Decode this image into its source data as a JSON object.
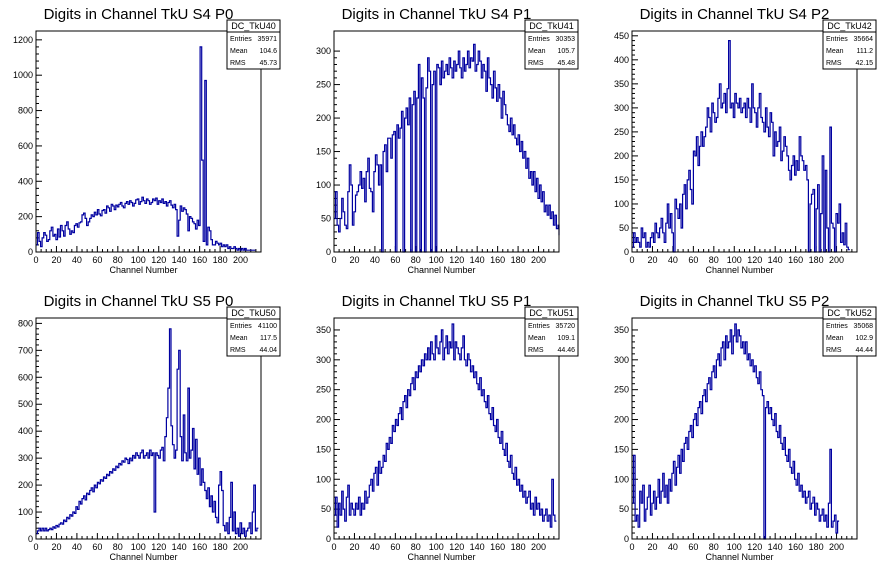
{
  "colors": {
    "line": "#0000a0",
    "axis": "#000000",
    "background": "#ffffff"
  },
  "chart_data": [
    {
      "type": "histogram",
      "title": "Digits in Channel TkU S4 P0",
      "xlabel": "Channel Number",
      "xlim": [
        0,
        220
      ],
      "ylim": [
        0,
        1250
      ],
      "yticks": [
        0,
        200,
        400,
        600,
        800,
        1000,
        1200
      ],
      "xticks": [
        0,
        20,
        40,
        60,
        80,
        100,
        120,
        140,
        160,
        180,
        200
      ],
      "stats": {
        "name": "DC_TkU40",
        "rows": [
          [
            "Entries",
            "35971"
          ],
          [
            "Mean",
            "104.6"
          ],
          [
            "RMS",
            "45.73"
          ]
        ]
      },
      "bin_width": 1.5,
      "values": [
        40,
        110,
        60,
        30,
        80,
        110,
        95,
        60,
        70,
        120,
        140,
        90,
        100,
        70,
        130,
        85,
        150,
        120,
        90,
        150,
        170,
        130,
        100,
        120,
        110,
        150,
        160,
        140,
        165,
        170,
        210,
        220,
        190,
        150,
        170,
        190,
        210,
        200,
        225,
        210,
        240,
        215,
        205,
        235,
        240,
        220,
        260,
        250,
        230,
        270,
        260,
        240,
        265,
        255,
        270,
        280,
        260,
        250,
        275,
        285,
        270,
        290,
        280,
        260,
        275,
        295,
        300,
        270,
        285,
        310,
        290,
        275,
        300,
        290,
        270,
        280,
        300,
        290,
        305,
        270,
        290,
        280,
        300,
        275,
        285,
        260,
        280,
        290,
        265,
        250,
        270,
        240,
        90,
        180,
        260,
        230,
        250,
        240,
        215,
        120,
        200,
        190,
        170,
        160,
        130,
        180,
        150,
        1160,
        520,
        60,
        970,
        40,
        140,
        120,
        70,
        40,
        40,
        60,
        50,
        40,
        50,
        30,
        40,
        30,
        40,
        20,
        30,
        20,
        20,
        30,
        20,
        10,
        20,
        10,
        20,
        10,
        20,
        10,
        10,
        10,
        10,
        10,
        10
      ]
    },
    {
      "type": "histogram",
      "title": "Digits in Channel TkU S4 P1",
      "xlabel": "Channel Number",
      "xlim": [
        0,
        220
      ],
      "ylim": [
        0,
        330
      ],
      "yticks": [
        0,
        50,
        100,
        150,
        200,
        250,
        300
      ],
      "xticks": [
        0,
        20,
        40,
        60,
        80,
        100,
        120,
        140,
        160,
        180,
        200
      ],
      "stats": {
        "name": "DC_TkU41",
        "rows": [
          [
            "Entries",
            "30353"
          ],
          [
            "Mean",
            "105.7"
          ],
          [
            "RMS",
            "45.48"
          ]
        ]
      },
      "bin_width": 1.5,
      "values": [
        50,
        90,
        40,
        30,
        50,
        80,
        60,
        40,
        35,
        90,
        130,
        100,
        40,
        60,
        85,
        90,
        100,
        120,
        95,
        110,
        75,
        120,
        140,
        95,
        90,
        60,
        120,
        145,
        130,
        100,
        130,
        0,
        150,
        160,
        120,
        170,
        170,
        140,
        175,
        180,
        0,
        190,
        170,
        185,
        210,
        0,
        200,
        215,
        190,
        230,
        0,
        220,
        240,
        0,
        230,
        280,
        0,
        260,
        230,
        0,
        245,
        290,
        270,
        0,
        250,
        270,
        0,
        280,
        275,
        250,
        285,
        260,
        270,
        280,
        265,
        290,
        275,
        260,
        285,
        270,
        280,
        300,
        275,
        260,
        290,
        270,
        280,
        300,
        275,
        290,
        285,
        310,
        270,
        280,
        300,
        285,
        260,
        280,
        270,
        240,
        290,
        260,
        250,
        230,
        270,
        245,
        225,
        250,
        230,
        200,
        240,
        220,
        205,
        190,
        180,
        200,
        175,
        190,
        170,
        160,
        175,
        150,
        165,
        140,
        150,
        125,
        140,
        110,
        120,
        100,
        120,
        90,
        110,
        80,
        100,
        75,
        90,
        60,
        70,
        55,
        70,
        50,
        60,
        40,
        55,
        35,
        40,
        30,
        25,
        35,
        30,
        25,
        30
      ]
    },
    {
      "type": "histogram",
      "title": "Digits in Channel TkU S4 P2",
      "xlabel": "Channel Number",
      "xlim": [
        0,
        220
      ],
      "ylim": [
        0,
        460
      ],
      "yticks": [
        0,
        50,
        100,
        150,
        200,
        250,
        300,
        350,
        400,
        450
      ],
      "xticks": [
        0,
        20,
        40,
        60,
        80,
        100,
        120,
        140,
        160,
        180,
        200
      ],
      "stats": {
        "name": "DC_TkU42",
        "rows": [
          [
            "Entries",
            "35664"
          ],
          [
            "Mean",
            "111.2"
          ],
          [
            "RMS",
            "42.15"
          ]
        ]
      },
      "bin_width": 1.5,
      "values": [
        10,
        40,
        20,
        30,
        20,
        10,
        50,
        30,
        40,
        10,
        20,
        10,
        30,
        40,
        20,
        60,
        40,
        30,
        50,
        70,
        40,
        20,
        60,
        100,
        50,
        80,
        40,
        0,
        110,
        90,
        70,
        100,
        50,
        120,
        140,
        90,
        150,
        170,
        130,
        100,
        210,
        200,
        240,
        180,
        220,
        250,
        220,
        240,
        260,
        300,
        280,
        250,
        310,
        290,
        270,
        280,
        320,
        350,
        300,
        310,
        330,
        290,
        340,
        440,
        300,
        310,
        280,
        330,
        310,
        300,
        320,
        290,
        300,
        310,
        280,
        320,
        300,
        270,
        350,
        300,
        290,
        260,
        300,
        330,
        280,
        270,
        250,
        300,
        260,
        240,
        290,
        270,
        200,
        250,
        220,
        230,
        260,
        190,
        210,
        240,
        220,
        200,
        170,
        150,
        180,
        200,
        160,
        190,
        170,
        240,
        200,
        190,
        170,
        180,
        150,
        0,
        100,
        120,
        130,
        0,
        90,
        140,
        0,
        80,
        200,
        0,
        170,
        50,
        0,
        260,
        60,
        50,
        0,
        80,
        60,
        100,
        20,
        40,
        15,
        60,
        10,
        5
      ]
    },
    {
      "type": "histogram",
      "title": "Digits in Channel TkU S5 P0",
      "xlabel": "Channel Number",
      "xlim": [
        0,
        220
      ],
      "ylim": [
        0,
        820
      ],
      "yticks": [
        0,
        100,
        200,
        300,
        400,
        500,
        600,
        700,
        800
      ],
      "xticks": [
        0,
        20,
        40,
        60,
        80,
        100,
        120,
        140,
        160,
        180,
        200
      ],
      "stats": {
        "name": "DC_TkU50",
        "rows": [
          [
            "Entries",
            "41100"
          ],
          [
            "Mean",
            "117.5"
          ],
          [
            "RMS",
            "44.04"
          ]
        ]
      },
      "bin_width": 1.5,
      "values": [
        20,
        30,
        40,
        30,
        40,
        30,
        40,
        30,
        35,
        40,
        35,
        45,
        40,
        50,
        45,
        55,
        60,
        55,
        70,
        65,
        80,
        75,
        90,
        85,
        100,
        95,
        120,
        110,
        140,
        130,
        150,
        160,
        145,
        170,
        165,
        180,
        190,
        175,
        200,
        190,
        210,
        205,
        220,
        215,
        230,
        225,
        240,
        235,
        250,
        245,
        260,
        255,
        270,
        265,
        280,
        275,
        290,
        285,
        300,
        295,
        280,
        300,
        290,
        310,
        300,
        320,
        310,
        300,
        320,
        330,
        300,
        310,
        320,
        300,
        330,
        310,
        320,
        100,
        320,
        310,
        300,
        330,
        340,
        290,
        380,
        450,
        560,
        780,
        420,
        350,
        300,
        330,
        630,
        700,
        380,
        290,
        460,
        320,
        290,
        560,
        300,
        330,
        410,
        260,
        370,
        240,
        300,
        200,
        260,
        210,
        180,
        150,
        190,
        120,
        160,
        100,
        140,
        80,
        60,
        200,
        250,
        180,
        50,
        30,
        60,
        20,
        80,
        210,
        30,
        100,
        20,
        40,
        10,
        60,
        20,
        40,
        10,
        30,
        40,
        60,
        20,
        100,
        200,
        30,
        40
      ]
    },
    {
      "type": "histogram",
      "title": "Digits in Channel TkU S5 P1",
      "xlabel": "Channel Number",
      "xlim": [
        0,
        220
      ],
      "ylim": [
        0,
        370
      ],
      "yticks": [
        0,
        50,
        100,
        150,
        200,
        250,
        300,
        350
      ],
      "xticks": [
        0,
        20,
        40,
        60,
        80,
        100,
        120,
        140,
        160,
        180,
        200
      ],
      "stats": {
        "name": "DC_TkU51",
        "rows": [
          [
            "Entries",
            "35720"
          ],
          [
            "Mean",
            "109.1"
          ],
          [
            "RMS",
            "44.46"
          ]
        ]
      },
      "bin_width": 1.5,
      "values": [
        40,
        70,
        20,
        60,
        40,
        80,
        50,
        30,
        70,
        90,
        40,
        60,
        50,
        40,
        60,
        50,
        70,
        40,
        60,
        50,
        80,
        60,
        70,
        90,
        100,
        80,
        110,
        120,
        90,
        130,
        110,
        120,
        140,
        130,
        160,
        150,
        170,
        160,
        190,
        180,
        200,
        190,
        210,
        220,
        200,
        230,
        240,
        220,
        250,
        240,
        260,
        270,
        250,
        280,
        270,
        290,
        280,
        300,
        290,
        310,
        300,
        320,
        300,
        330,
        310,
        300,
        340,
        320,
        310,
        330,
        350,
        300,
        320,
        340,
        310,
        330,
        320,
        360,
        300,
        330,
        320,
        310,
        300,
        320,
        340,
        300,
        290,
        310,
        300,
        280,
        290,
        270,
        280,
        260,
        250,
        270,
        240,
        250,
        230,
        220,
        240,
        210,
        200,
        220,
        190,
        180,
        200,
        170,
        160,
        180,
        150,
        140,
        160,
        130,
        120,
        140,
        110,
        100,
        120,
        90,
        100,
        80,
        90,
        70,
        80,
        60,
        70,
        80,
        50,
        60,
        40,
        70,
        50,
        60,
        40,
        50,
        30,
        40,
        50,
        30,
        40,
        20,
        100,
        40,
        30
      ]
    },
    {
      "type": "histogram",
      "title": "Digits in Channel TkU S5 P2",
      "xlabel": "Channel Number",
      "xlim": [
        0,
        220
      ],
      "ylim": [
        0,
        370
      ],
      "yticks": [
        0,
        50,
        100,
        150,
        200,
        250,
        300,
        350
      ],
      "xticks": [
        0,
        20,
        40,
        60,
        80,
        100,
        120,
        140,
        160,
        180,
        200
      ],
      "stats": {
        "name": "DC_TkU52",
        "rows": [
          [
            "Entries",
            "35068"
          ],
          [
            "Mean",
            "102.9"
          ],
          [
            "RMS",
            "44.44"
          ]
        ]
      },
      "bin_width": 1.5,
      "values": [
        60,
        140,
        30,
        40,
        20,
        80,
        60,
        90,
        30,
        50,
        70,
        90,
        40,
        60,
        80,
        50,
        70,
        100,
        60,
        80,
        110,
        70,
        90,
        60,
        100,
        80,
        110,
        130,
        90,
        120,
        140,
        110,
        150,
        130,
        160,
        170,
        150,
        180,
        190,
        170,
        200,
        210,
        190,
        220,
        230,
        210,
        240,
        250,
        230,
        260,
        270,
        250,
        280,
        290,
        270,
        300,
        310,
        290,
        320,
        330,
        300,
        340,
        320,
        330,
        350,
        310,
        340,
        360,
        330,
        350,
        340,
        320,
        330,
        310,
        330,
        300,
        310,
        290,
        300,
        280,
        290,
        270,
        260,
        280,
        250,
        240,
        0,
        220,
        230,
        210,
        220,
        200,
        190,
        210,
        180,
        170,
        190,
        160,
        150,
        170,
        140,
        130,
        150,
        120,
        110,
        130,
        100,
        90,
        110,
        80,
        90,
        70,
        80,
        60,
        70,
        80,
        50,
        60,
        70,
        40,
        60,
        50,
        30,
        40,
        50,
        30,
        40,
        20,
        60,
        150,
        20,
        30,
        40,
        10,
        30
      ]
    }
  ]
}
